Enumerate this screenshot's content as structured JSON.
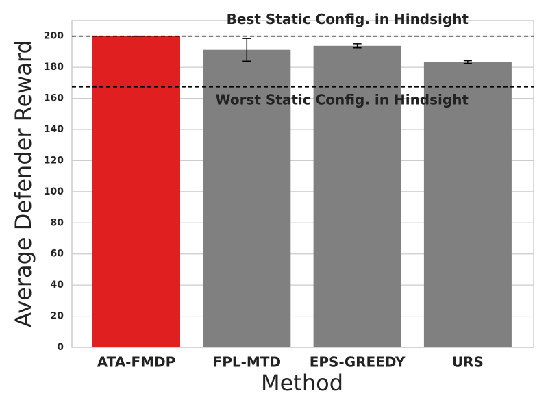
{
  "chart_data": {
    "type": "bar",
    "x_label": "Method",
    "y_label": "Average Defender Reward",
    "categories": [
      "ATA-FMDP",
      "FPL-MTD",
      "EPS-GREEDY",
      "URS"
    ],
    "values": [
      200,
      191.2,
      193.8,
      183.3
    ],
    "errors": [
      0,
      7.3,
      1.3,
      0.9
    ],
    "colors": [
      "#e02020",
      "#808080",
      "#808080",
      "#808080"
    ],
    "ylim": [
      0,
      210
    ],
    "yticks": [
      0,
      20,
      40,
      60,
      80,
      100,
      120,
      140,
      160,
      180,
      200
    ],
    "grid": true,
    "reference_lines": [
      {
        "label": "Best Static Config. in Hindsight",
        "value": 200
      },
      {
        "label": "Worst Static Config. in Hindsight",
        "value": 167.4
      }
    ]
  }
}
